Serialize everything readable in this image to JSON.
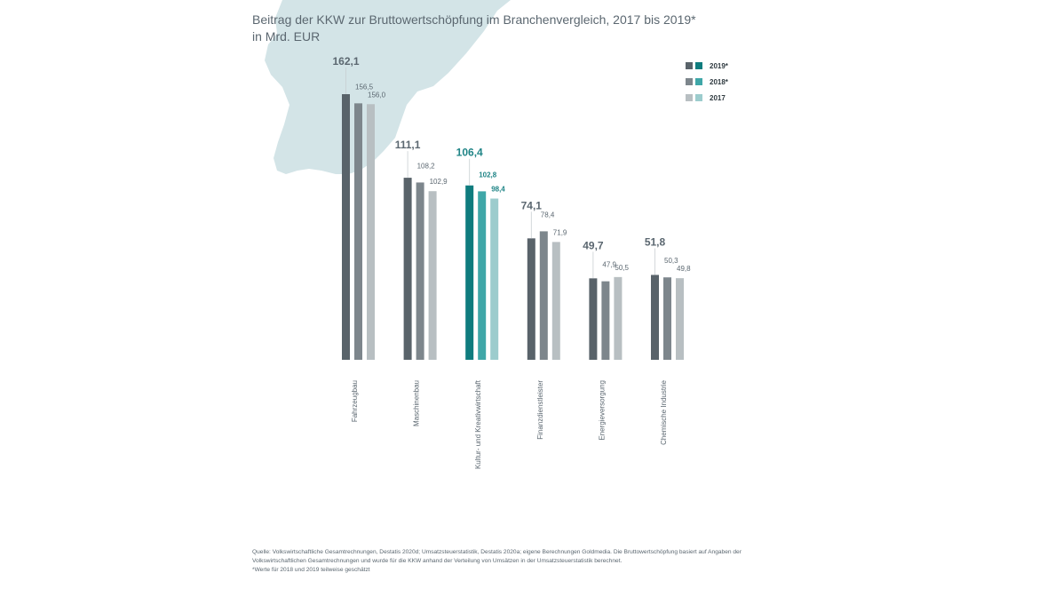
{
  "title": "Beitrag der KKW zur Bruttowertschöpfung im Branchenvergleich, 2017 bis 2019*",
  "subtitle": "in Mrd. EUR",
  "source": "Quelle: Volkswirtschaftliche Gesamtrechnungen, Destatis 2020d; Umsatzsteuerstatistik, Destatis 2020a; eigene Berechnungen Goldmedia. Die Bruttowertschöpfung basiert auf Angaben der Volkswirtschaftlichen Gesamtrechnungen und wurde für die KKW anhand der Verteilung von Umsätzen in der Umsatzsteuerstatistik berechnet.",
  "footnote": "*Werte für 2018 und 2019 teilweise geschätzt",
  "colors": {
    "y2019": "#59636a",
    "y2018": "#7d868c",
    "y2017": "#b8bfc2",
    "h2019": "#0f7c7e",
    "h2018": "#3fa7a8",
    "h2017": "#9ccccd",
    "label": "#5b6770",
    "highlight_label": "#1f8486",
    "map": "#d3e4e7"
  },
  "chart_data": {
    "type": "bar",
    "title": "Beitrag der KKW zur Bruttowertschöpfung im Branchenvergleich, 2017 bis 2019*",
    "subtitle": "in Mrd. EUR",
    "categories": [
      "Fahrzeugbau",
      "Maschinenbau",
      "Kultur- und Kreativwirtschaft",
      "Finanzdienstleister",
      "Energieversorgung",
      "Chemische Industrie"
    ],
    "series": [
      {
        "name": "2019*",
        "values": [
          162.1,
          111.1,
          106.4,
          74.1,
          49.7,
          51.8
        ]
      },
      {
        "name": "2018*",
        "values": [
          156.5,
          108.2,
          102.8,
          78.4,
          47.9,
          50.3
        ]
      },
      {
        "name": "2017",
        "values": [
          156.0,
          102.9,
          98.4,
          71.9,
          50.5,
          49.8
        ]
      }
    ],
    "value_labels": [
      [
        "162,1",
        "156,5",
        "156,0"
      ],
      [
        "111,1",
        "108,2",
        "102,9"
      ],
      [
        "106,4",
        "102,8",
        "98,4"
      ],
      [
        "74,1",
        "78,4",
        "71,9"
      ],
      [
        "49,7",
        "47,9",
        "50,5"
      ],
      [
        "51,8",
        "50,3",
        "49,8"
      ]
    ],
    "highlight_category": "Kultur- und Kreativwirtschaft",
    "ylim": [
      0,
      162.1
    ],
    "grid": false,
    "legend": "top-right",
    "xlabel": "",
    "ylabel": ""
  }
}
